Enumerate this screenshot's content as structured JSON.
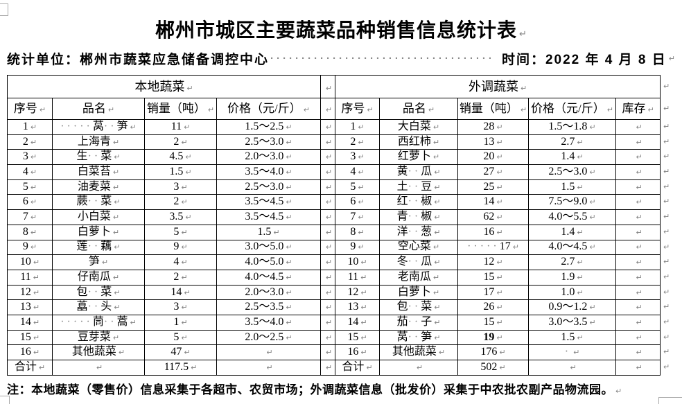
{
  "title": {
    "text": "郴州市城区主要蔬菜品种销售信息统计表"
  },
  "subtitle": {
    "unit_label": "统计单位：郴州市蔬菜应急储备调控中心",
    "leader_dots": "····································",
    "time_label": "时间：2022 年 4 月 8 日"
  },
  "table": {
    "left_section_title": "本地蔬菜",
    "right_section_title": "外调蔬菜",
    "left_columns": [
      "序号",
      "品名",
      "销量（吨）",
      "价格（元/斤）"
    ],
    "right_columns": [
      "序号",
      "品名",
      "销量（吨）",
      "价格（元/斤）",
      "库存"
    ],
    "left_rows": [
      {
        "no": "1",
        "name": "·····莴··笋",
        "sales": "11",
        "price": "1.5～2.5"
      },
      {
        "no": "2",
        "name": "上海青",
        "sales": "2",
        "price": "2.5～3.0"
      },
      {
        "no": "3",
        "name": "生··菜",
        "sales": "4.5",
        "price": "2.0～3.0"
      },
      {
        "no": "4",
        "name": "白菜苔",
        "sales": "1.5",
        "price": "3.5～4.0"
      },
      {
        "no": "5",
        "name": "油麦菜",
        "sales": "3",
        "price": "2.5～3.0"
      },
      {
        "no": "6",
        "name": "蕨··菜",
        "sales": "2",
        "price": "3.5～4.5"
      },
      {
        "no": "7",
        "name": "小白菜",
        "sales": "3.5",
        "price": "3.5～4.5"
      },
      {
        "no": "8",
        "name": "白萝卜",
        "sales": "5",
        "price": "1.5"
      },
      {
        "no": "9",
        "name": "莲··藕",
        "sales": "9",
        "price": "3.0～5.0"
      },
      {
        "no": "10",
        "name": "笋",
        "sales": "4",
        "price": "4.0～5.0"
      },
      {
        "no": "11",
        "name": "仔南瓜",
        "sales": "2",
        "price": "4.0～4.5"
      },
      {
        "no": "12",
        "name": "包··菜",
        "sales": "14",
        "price": "2.0～3.0"
      },
      {
        "no": "13",
        "name": "藠··头",
        "sales": "3",
        "price": "2.5～3.5"
      },
      {
        "no": "14",
        "name": "·····茼··蒿",
        "sales": "1",
        "price": "3.5～4.0"
      },
      {
        "no": "15",
        "name": "豆芽菜",
        "sales": "5",
        "price": "2.0～2.5"
      },
      {
        "no": "16",
        "name": "其他蔬菜",
        "sales": "47",
        "price": ""
      },
      {
        "no": "合计",
        "name": "",
        "sales": "117.5",
        "price": ""
      }
    ],
    "right_rows": [
      {
        "no": "1",
        "name": "大白菜",
        "sales": "28",
        "price": "1.5～1.8",
        "stock": ""
      },
      {
        "no": "2",
        "name": "西红柿",
        "sales": "13",
        "price": "2.7",
        "stock": ""
      },
      {
        "no": "3",
        "name": "红萝卜",
        "sales": "20",
        "price": "1.4",
        "stock": ""
      },
      {
        "no": "4",
        "name": "黄··瓜",
        "sales": "27",
        "price": "2.5～3.0",
        "stock": ""
      },
      {
        "no": "5",
        "name": "土··豆",
        "sales": "25",
        "price": "1.5",
        "stock": ""
      },
      {
        "no": "6",
        "name": "红··椒",
        "sales": "14",
        "price": "7.5～9.0",
        "stock": ""
      },
      {
        "no": "7",
        "name": "青··椒",
        "sales": "62",
        "price": "4.0～5.5",
        "stock": ""
      },
      {
        "no": "8",
        "name": "洋··葱",
        "sales": "16",
        "price": "1.4",
        "stock": ""
      },
      {
        "no": "9",
        "name": "空心菜",
        "sales": "·····17",
        "price": "4.0～4.5",
        "stock": ""
      },
      {
        "no": "10",
        "name": "冬··瓜",
        "sales": "12",
        "price": "2.7",
        "stock": ""
      },
      {
        "no": "11",
        "name": "老南瓜",
        "sales": "15",
        "price": "1.9",
        "stock": ""
      },
      {
        "no": "12",
        "name": "白萝卜",
        "sales": "17",
        "price": "1.0",
        "stock": ""
      },
      {
        "no": "13",
        "name": "包··菜",
        "sales": "26",
        "price": "0.9～1.2",
        "stock": ""
      },
      {
        "no": "14",
        "name": "茄··子",
        "sales": "15",
        "price": "3.0～3.5",
        "stock": ""
      },
      {
        "no": "15",
        "name": "莴··笋",
        "sales": "19",
        "sales_bold": true,
        "price": "1.5",
        "stock": ""
      },
      {
        "no": "16",
        "name": "其他蔬菜",
        "sales": "176",
        "price": "·",
        "stock": ""
      },
      {
        "no": "合计",
        "name": "",
        "sales": "502",
        "price": "",
        "stock": ""
      }
    ]
  },
  "note": {
    "text": "注：本地蔬菜（零售价）信息采集于各超市、农贸市场；外调蔬菜信息（批发价）采集于中农批农副产品物流园。"
  },
  "marks": {
    "paragraph_mark": "↵"
  },
  "colors": {
    "text": "#000000",
    "border": "#000000",
    "format_mark": "#838383"
  }
}
